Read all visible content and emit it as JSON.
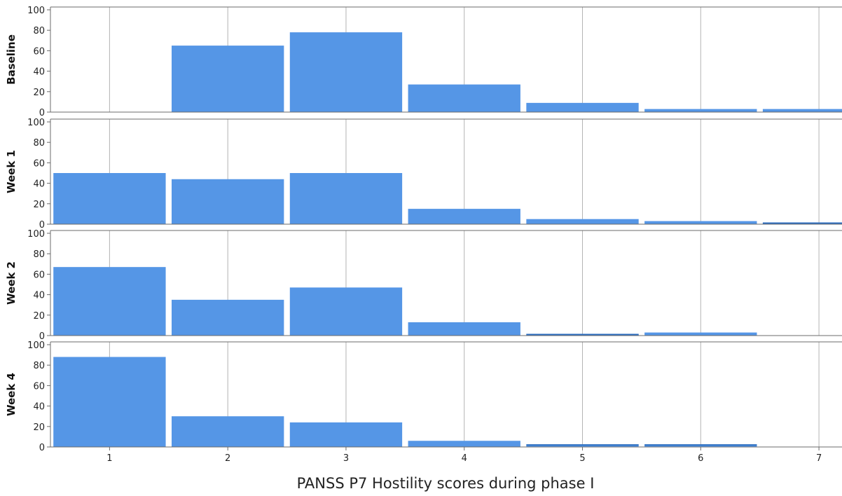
{
  "chart_data": {
    "type": "bar",
    "xlabel": "PANSS P7 Hostility scores during phase I",
    "categories": [
      "1",
      "2",
      "3",
      "4",
      "5",
      "6",
      "7"
    ],
    "ylim": [
      0,
      100
    ],
    "yticks": [
      "0",
      "20",
      "40",
      "60",
      "80",
      "100"
    ],
    "grid": true,
    "colors": {
      "bar": "#5596e6",
      "grid": "#b3b3b3",
      "axis": "#6b6b6b"
    },
    "series": [
      {
        "name": "Baseline",
        "values": [
          0,
          65,
          78,
          27,
          9,
          3,
          3
        ]
      },
      {
        "name": "Week 1",
        "values": [
          50,
          44,
          50,
          15,
          5,
          3,
          1
        ]
      },
      {
        "name": "Week 2",
        "values": [
          67,
          35,
          47,
          13,
          1,
          3,
          0
        ]
      },
      {
        "name": "Week 4",
        "values": [
          88,
          30,
          24,
          6,
          2,
          2,
          0
        ]
      }
    ]
  }
}
